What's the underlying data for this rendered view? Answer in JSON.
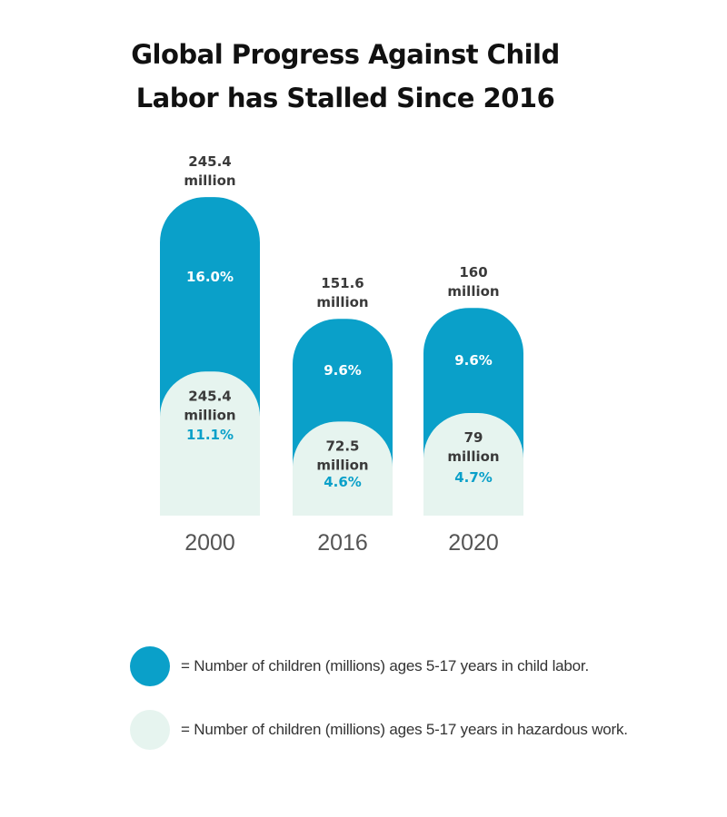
{
  "title_lines": [
    "Global Progress Against Child",
    "Labor has Stalled Since 2016"
  ],
  "colors": {
    "child_labor": "#0aa0c9",
    "hazardous": "#e6f4ef",
    "pct_on_light": "#0aa0c9",
    "pct_on_dark": "#ffffff"
  },
  "chart_data": {
    "type": "bar",
    "title": "Global Progress Against Child Labor has Stalled Since 2016",
    "categories": [
      "2000",
      "2016",
      "2020"
    ],
    "series": [
      {
        "name": "= Number of children (millions) ages 5-17 years in child labor.",
        "values": [
          245.4,
          151.6,
          160
        ],
        "value_labels": [
          "245.4 million",
          "151.6 million",
          "160 million"
        ],
        "pct_labels": [
          "16.0%",
          "9.6%",
          "9.6%"
        ]
      },
      {
        "name": "= Number of children (millions) ages 5-17 years in hazardous work.",
        "values": [
          245.4,
          72.5,
          79
        ],
        "value_labels": [
          "245.4 million",
          "72.5 million",
          "79 million"
        ],
        "pct_labels": [
          "11.1%",
          "4.6%",
          "4.7%"
        ]
      }
    ]
  },
  "legend": [
    {
      "label": "= Number of children (millions) ages 5-17 years in child labor.",
      "color": "#0aa0c9"
    },
    {
      "label": "= Number of children (millions) ages 5-17 years in hazardous work.",
      "color": "#e6f4ef"
    }
  ]
}
